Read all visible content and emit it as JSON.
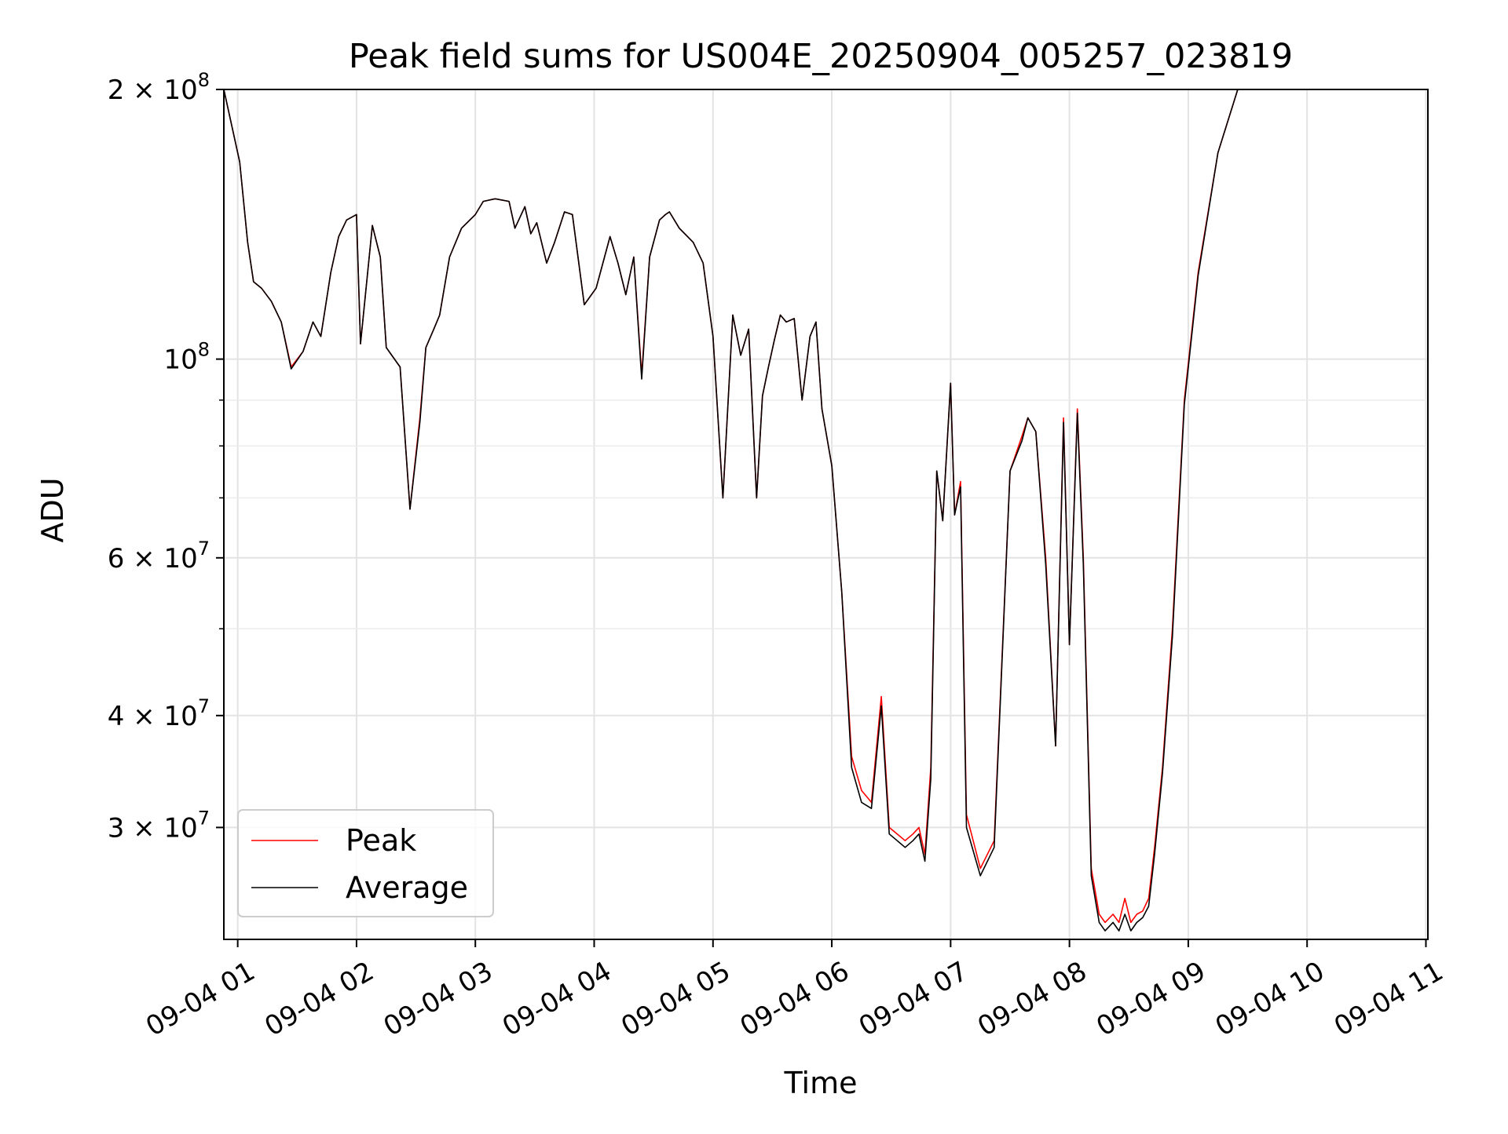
{
  "chart_data": {
    "type": "line",
    "title": "Peak field sums for US004E_20250904_005257_023819",
    "xlabel": "Time",
    "ylabel": "ADU",
    "yscale": "log",
    "ylim": [
      22500000,
      200000000
    ],
    "xlim": [
      "09-04 00:53",
      "09-04 11:01"
    ],
    "grid": true,
    "legend_position": "lower-left",
    "x_ticks": [
      {
        "value": "09-04 01:00",
        "label": "09-04 01"
      },
      {
        "value": "09-04 02:00",
        "label": "09-04 02"
      },
      {
        "value": "09-04 03:00",
        "label": "09-04 03"
      },
      {
        "value": "09-04 04:00",
        "label": "09-04 04"
      },
      {
        "value": "09-04 05:00",
        "label": "09-04 05"
      },
      {
        "value": "09-04 06:00",
        "label": "09-04 06"
      },
      {
        "value": "09-04 07:00",
        "label": "09-04 07"
      },
      {
        "value": "09-04 08:00",
        "label": "09-04 08"
      },
      {
        "value": "09-04 09:00",
        "label": "09-04 09"
      },
      {
        "value": "09-04 10:00",
        "label": "09-04 10"
      },
      {
        "value": "09-04 11:00",
        "label": "09-04 11"
      }
    ],
    "y_ticks": [
      {
        "value": 30000000,
        "mantissa": "3",
        "exponent": "7"
      },
      {
        "value": 40000000,
        "mantissa": "4",
        "exponent": "7"
      },
      {
        "value": 60000000,
        "mantissa": "6",
        "exponent": "7"
      },
      {
        "value": 100000000,
        "mantissa": "",
        "exponent": "8"
      },
      {
        "value": 200000000,
        "mantissa": "2",
        "exponent": "8"
      }
    ],
    "y_minor_ticks": [
      50000000,
      70000000,
      80000000,
      90000000
    ],
    "x": [
      "09-04 00:53",
      "09-04 01:01",
      "09-04 01:05",
      "09-04 01:08",
      "09-04 01:12",
      "09-04 01:17",
      "09-04 01:22",
      "09-04 01:27",
      "09-04 01:33",
      "09-04 01:38",
      "09-04 01:42",
      "09-04 01:47",
      "09-04 01:51",
      "09-04 01:55",
      "09-04 02:00",
      "09-04 02:02",
      "09-04 02:08",
      "09-04 02:12",
      "09-04 02:15",
      "09-04 02:22",
      "09-04 02:27",
      "09-04 02:32",
      "09-04 02:35",
      "09-04 02:39",
      "09-04 02:42",
      "09-04 02:47",
      "09-04 02:53",
      "09-04 03:00",
      "09-04 03:04",
      "09-04 03:10",
      "09-04 03:17",
      "09-04 03:20",
      "09-04 03:25",
      "09-04 03:28",
      "09-04 03:31",
      "09-04 03:36",
      "09-04 03:40",
      "09-04 03:45",
      "09-04 03:49",
      "09-04 03:55",
      "09-04 04:01",
      "09-04 04:08",
      "09-04 04:12",
      "09-04 04:16",
      "09-04 04:20",
      "09-04 04:24",
      "09-04 04:28",
      "09-04 04:33",
      "09-04 04:36",
      "09-04 04:38",
      "09-04 04:43",
      "09-04 04:50",
      "09-04 04:55",
      "09-04 05:00",
      "09-04 05:05",
      "09-04 05:10",
      "09-04 05:14",
      "09-04 05:18",
      "09-04 05:22",
      "09-04 05:25",
      "09-04 05:28",
      "09-04 05:31",
      "09-04 05:34",
      "09-04 05:37",
      "09-04 05:41",
      "09-04 05:45",
      "09-04 05:49",
      "09-04 05:52",
      "09-04 05:55",
      "09-04 06:00",
      "09-04 06:05",
      "09-04 06:10",
      "09-04 06:15",
      "09-04 06:20",
      "09-04 06:25",
      "09-04 06:29",
      "09-04 06:33",
      "09-04 06:37",
      "09-04 06:41",
      "09-04 06:44",
      "09-04 06:47",
      "09-04 06:50",
      "09-04 06:53",
      "09-04 06:56",
      "09-04 07:00",
      "09-04 07:02",
      "09-04 07:05",
      "09-04 07:08",
      "09-04 07:15",
      "09-04 07:22",
      "09-04 07:30",
      "09-04 07:36",
      "09-04 07:39",
      "09-04 07:43",
      "09-04 07:48",
      "09-04 07:53",
      "09-04 07:57",
      "09-04 08:00",
      "09-04 08:04",
      "09-04 08:07",
      "09-04 08:11",
      "09-04 08:15",
      "09-04 08:18",
      "09-04 08:22",
      "09-04 08:25",
      "09-04 08:28",
      "09-04 08:31",
      "09-04 08:34",
      "09-04 08:37",
      "09-04 08:40",
      "09-04 08:43",
      "09-04 08:47",
      "09-04 08:52",
      "09-04 08:58",
      "09-04 09:05",
      "09-04 09:15",
      "09-04 09:25",
      "09-04 09:35",
      "09-04 09:45",
      "09-04 09:55",
      "09-04 10:05",
      "09-04 10:12",
      "09-04 10:18",
      "09-04 10:25",
      "09-04 10:32",
      "09-04 10:38",
      "09-04 10:45",
      "09-04 10:52",
      "09-04 11:00"
    ],
    "series": [
      {
        "name": "Peak",
        "color": "#ff0000",
        "values": [
          200000000,
          166000000,
          135000000,
          122000000,
          120000000,
          116000000,
          110000000,
          98000000,
          102000000,
          110000000,
          106000000,
          125000000,
          137000000,
          143000000,
          145000000,
          104000000,
          141000000,
          130000000,
          103000000,
          98000000,
          68000000,
          86000000,
          103000000,
          108000000,
          112000000,
          130000000,
          140000000,
          145000000,
          150000000,
          151000000,
          150000000,
          140000000,
          148000000,
          138000000,
          142000000,
          128000000,
          135000000,
          146000000,
          145000000,
          115000000,
          120000000,
          137000000,
          128000000,
          118000000,
          130000000,
          96000000,
          130000000,
          143000000,
          145000000,
          146000000,
          140000000,
          135000000,
          128000000,
          106000000,
          70000000,
          112000000,
          101000000,
          108000000,
          70000000,
          91000000,
          98000000,
          105000000,
          112000000,
          110000000,
          111000000,
          90000000,
          106000000,
          110000000,
          88000000,
          76000000,
          55000000,
          36000000,
          33000000,
          32000000,
          42000000,
          30000000,
          29500000,
          29000000,
          29500000,
          30000000,
          28000000,
          35000000,
          75000000,
          66000000,
          94000000,
          67000000,
          73000000,
          31000000,
          27000000,
          29000000,
          75000000,
          82000000,
          86000000,
          83000000,
          60000000,
          37000000,
          86000000,
          48000000,
          88000000,
          60000000,
          27000000,
          24000000,
          23500000,
          24000000,
          23500000,
          25000000,
          23500000,
          24000000,
          24200000,
          25000000,
          28500000,
          35000000,
          50000000,
          90000000,
          125000000,
          170000000,
          200000000,
          200000000,
          200000000,
          200000000,
          200000000,
          200000000,
          200000000,
          200000000,
          200000000,
          200000000,
          200000000,
          200000000,
          200000000
        ]
      },
      {
        "name": "Average",
        "color": "#000000",
        "values": [
          200000000,
          166000000,
          135000000,
          122000000,
          120000000,
          116000000,
          110000000,
          97500000,
          102000000,
          110000000,
          106000000,
          125000000,
          137000000,
          143000000,
          145000000,
          104000000,
          141000000,
          130000000,
          103000000,
          98000000,
          68000000,
          85000000,
          103000000,
          108000000,
          112000000,
          130000000,
          140000000,
          145000000,
          150000000,
          151000000,
          150000000,
          140000000,
          148000000,
          138000000,
          142000000,
          128000000,
          135000000,
          146000000,
          145000000,
          115000000,
          120000000,
          137000000,
          128000000,
          118000000,
          130000000,
          95000000,
          130000000,
          143000000,
          145000000,
          146000000,
          140000000,
          135000000,
          128000000,
          106000000,
          70000000,
          112000000,
          101000000,
          108000000,
          70000000,
          91000000,
          98000000,
          105000000,
          112000000,
          110000000,
          111000000,
          90000000,
          106000000,
          110000000,
          88000000,
          76000000,
          55000000,
          35000000,
          32000000,
          31500000,
          41000000,
          29500000,
          29000000,
          28500000,
          29000000,
          29500000,
          27500000,
          34000000,
          75000000,
          66000000,
          94000000,
          67000000,
          72000000,
          30000000,
          26500000,
          28500000,
          75000000,
          81000000,
          86000000,
          83000000,
          59000000,
          37000000,
          85000000,
          48000000,
          87000000,
          59000000,
          26500000,
          23500000,
          23000000,
          23500000,
          23000000,
          24000000,
          23000000,
          23500000,
          23800000,
          24500000,
          28000000,
          34500000,
          49000000,
          89000000,
          124000000,
          170000000,
          200000000,
          200000000,
          200000000,
          200000000,
          200000000,
          200000000,
          200000000,
          200000000,
          200000000,
          200000000,
          200000000,
          200000000,
          200000000
        ]
      }
    ]
  }
}
